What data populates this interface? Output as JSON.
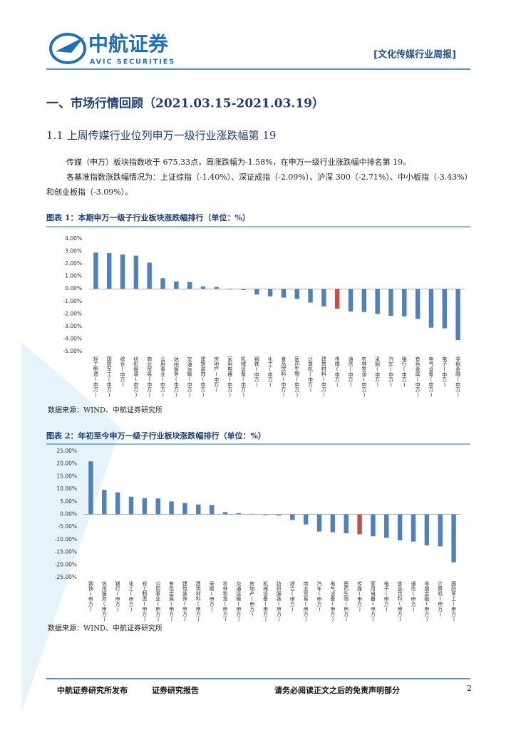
{
  "header": {
    "logo": "中航证券",
    "logo_en": "AVIC SECURITIES",
    "report_type": "[文化传媒行业周报]"
  },
  "section": "一、市场行情回顾（2021.03.15-2021.03.19）",
  "subsection": "1.1 上周传媒行业位列申万一级行业涨跌幅第 19",
  "paragraphs": [
    "传媒（申万）板块指数收于 675.33点，周涨跌幅为-1.58%，在申万一级行业涨跌幅中排名第 19。",
    "各基准指数涨跌幅情况为：上证综指（-1.40%）、深证成指（-2.09%）、沪深 300（-2.71%）、中小板指（-3.43%）和创业板指（-3.09%）。"
  ],
  "chart_data": [
    {
      "type": "bar",
      "title": "图表 1：本期申万一级子行业板块涨跌幅排行（单位：%）",
      "source": "数据来源：WIND、中航证券研究所",
      "categories": [
        "轻工制造(申万)",
        "国防军工(申万)",
        "综合(申万)",
        "纺织服装(申万)",
        "商业贸易(申万)",
        "公用事业(申万)",
        "休闲服务(申万)",
        "交通运输(申万)",
        "建筑装饰(申万)",
        "房地产(申万)",
        "家用电器(申万)",
        "机械设备(申万)",
        "钢铁(申万)",
        "化工(申万)",
        "食品饮料(申万)",
        "医药生物(申万)",
        "计算机(申万)",
        "建筑材料(申万)",
        "传媒(申万)",
        "通信(申万)",
        "农林牧渔(申万)",
        "采掘(申万)",
        "汽车(申万)",
        "银行(申万)",
        "有色金属(申万)",
        "电气设备(申万)",
        "电子(申万)",
        "非银金融(申万)"
      ],
      "values": [
        2.9,
        2.85,
        2.75,
        2.65,
        2.1,
        0.85,
        0.6,
        0.55,
        0.2,
        0.15,
        -0.05,
        -0.1,
        -0.45,
        -0.6,
        -0.7,
        -0.8,
        -1.1,
        -1.4,
        -1.58,
        -1.8,
        -1.85,
        -2.0,
        -2.15,
        -2.2,
        -2.4,
        -3.1,
        -3.15,
        -4.1
      ],
      "colors": [
        "#4f81bd",
        "#4f81bd",
        "#4f81bd",
        "#4f81bd",
        "#4f81bd",
        "#4f81bd",
        "#4f81bd",
        "#4f81bd",
        "#4f81bd",
        "#4f81bd",
        "#4f81bd",
        "#4f81bd",
        "#4f81bd",
        "#4f81bd",
        "#4f81bd",
        "#4f81bd",
        "#4f81bd",
        "#4f81bd",
        "#c0504d",
        "#4f81bd",
        "#4f81bd",
        "#4f81bd",
        "#4f81bd",
        "#4f81bd",
        "#4f81bd",
        "#4f81bd",
        "#4f81bd",
        "#4f81bd"
      ],
      "ylim": [
        -5,
        4
      ],
      "yticks": [
        {
          "value": 4,
          "label": "4.00%"
        },
        {
          "value": 3,
          "label": "3.00%"
        },
        {
          "value": 2,
          "label": "2.00%"
        },
        {
          "value": 1,
          "label": "1.00%"
        },
        {
          "value": 0,
          "label": "0.00%"
        },
        {
          "value": -1,
          "label": "-1.00%"
        },
        {
          "value": -2,
          "label": "-2.00%"
        },
        {
          "value": -3,
          "label": "-3.00%"
        },
        {
          "value": -4,
          "label": "-4.00%"
        },
        {
          "value": -5,
          "label": "-5.00%"
        }
      ],
      "grid": false
    },
    {
      "type": "bar",
      "title": "图表 2：年初至今申万一级子行业板块涨跌幅排行（单位：%）",
      "source": "数据来源：WIND、中航证券研究所",
      "categories": [
        "钢铁(申万)",
        "休闲服务(申万)",
        "银行(申万)",
        "化工(申万)",
        "轻工制造(申万)",
        "公用事业(申万)",
        "有色金属(申万)",
        "建筑装饰(申万)",
        "建筑材料(申万)",
        "采掘(申万)",
        "农林牧渔(申万)",
        "交通运输(申万)",
        "房地产(申万)",
        "机械设备(申万)",
        "纺织服装(申万)",
        "综合(申万)",
        "商业贸易(申万)",
        "汽车(申万)",
        "电气设备(申万)",
        "医药生物(申万)",
        "传媒(申万)",
        "家用电器(申万)",
        "电子(申万)",
        "食品饮料(申万)",
        "通信(申万)",
        "非银金融(申万)",
        "计算机(申万)",
        "国防军工(申万)"
      ],
      "values": [
        21,
        9.7,
        8.7,
        7,
        6.4,
        6.3,
        5.1,
        4.5,
        3.9,
        3.7,
        0.9,
        0.5,
        0.2,
        -0.3,
        -0.5,
        -2.2,
        -4,
        -6.8,
        -7.1,
        -7.5,
        -7.9,
        -8.7,
        -9.3,
        -10.3,
        -10.8,
        -12.3,
        -12.7,
        -19
      ],
      "colors": [
        "#4f81bd",
        "#4f81bd",
        "#4f81bd",
        "#4f81bd",
        "#4f81bd",
        "#4f81bd",
        "#4f81bd",
        "#4f81bd",
        "#4f81bd",
        "#4f81bd",
        "#4f81bd",
        "#4f81bd",
        "#4f81bd",
        "#4f81bd",
        "#4f81bd",
        "#4f81bd",
        "#4f81bd",
        "#4f81bd",
        "#4f81bd",
        "#4f81bd",
        "#c0504d",
        "#4f81bd",
        "#4f81bd",
        "#4f81bd",
        "#4f81bd",
        "#4f81bd",
        "#4f81bd",
        "#4f81bd"
      ],
      "ylim": [
        -25,
        25
      ],
      "yticks": [
        {
          "value": 25,
          "label": "25.00%"
        },
        {
          "value": 20,
          "label": "20.00%"
        },
        {
          "value": 15,
          "label": "15.00%"
        },
        {
          "value": 10,
          "label": "10.00%"
        },
        {
          "value": 5,
          "label": "5.00%"
        },
        {
          "value": 0,
          "label": "0.00%"
        },
        {
          "value": -5,
          "label": "-5.00%"
        },
        {
          "value": -10,
          "label": "-10.00%"
        },
        {
          "value": -15,
          "label": "-15.00%"
        },
        {
          "value": -20,
          "label": "-20.00%"
        },
        {
          "value": -25,
          "label": "-25.00%"
        }
      ],
      "grid": false
    }
  ],
  "footer": {
    "left": "中航证券研究所发布",
    "middle": "证券研究报告",
    "right": "请务必阅读正文之后的免责声明部分",
    "page": "2"
  }
}
